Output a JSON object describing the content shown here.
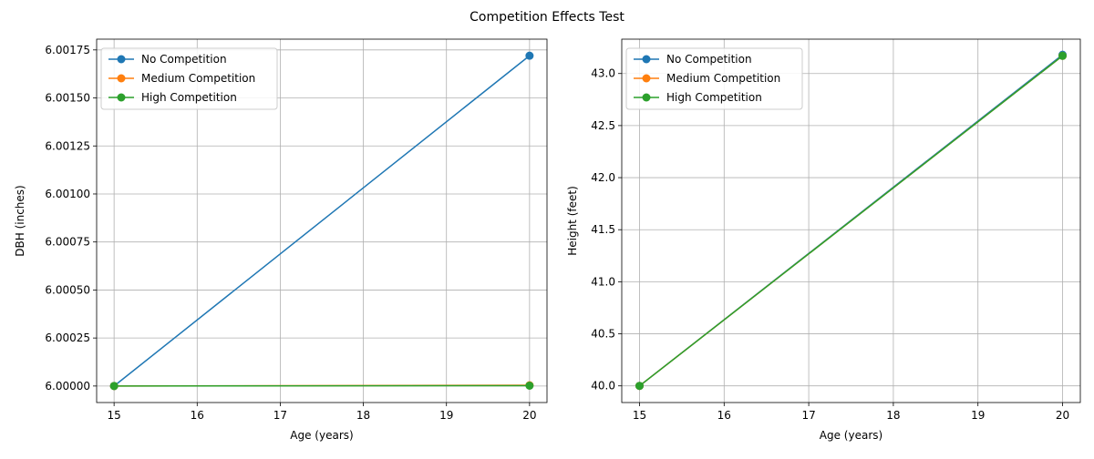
{
  "figure": {
    "title": "Competition Effects Test"
  },
  "chart_data": [
    {
      "type": "line",
      "xlabel": "Age (years)",
      "ylabel": "DBH (inches)",
      "xlim": [
        14.79,
        20.21
      ],
      "ylim": [
        5.999914,
        6.001806
      ],
      "xticks": [
        15,
        16,
        17,
        18,
        19,
        20
      ],
      "yticks": [
        6.0,
        6.00025,
        6.0005,
        6.00075,
        6.001,
        6.00125,
        6.0015,
        6.00175
      ],
      "ytick_decimals": 5,
      "grid": true,
      "legend": "top-left",
      "series": [
        {
          "name": "No Competition",
          "color": "#1f77b4",
          "x": [
            15,
            20
          ],
          "y": [
            6.0,
            6.00172
          ]
        },
        {
          "name": "Medium Competition",
          "color": "#ff7f0e",
          "x": [
            15,
            20
          ],
          "y": [
            6.0,
            6.000004
          ]
        },
        {
          "name": "High Competition",
          "color": "#2ca02c",
          "x": [
            15,
            20
          ],
          "y": [
            6.0,
            6.000002
          ]
        }
      ]
    },
    {
      "type": "line",
      "xlabel": "Age (years)",
      "ylabel": "Height (feet)",
      "xlim": [
        14.79,
        20.21
      ],
      "ylim": [
        39.84,
        43.33
      ],
      "xticks": [
        15,
        16,
        17,
        18,
        19,
        20
      ],
      "yticks": [
        40.0,
        40.5,
        41.0,
        41.5,
        42.0,
        42.5,
        43.0
      ],
      "ytick_decimals": 1,
      "grid": true,
      "legend": "top-left",
      "series": [
        {
          "name": "No Competition",
          "color": "#1f77b4",
          "x": [
            15,
            20
          ],
          "y": [
            40.0,
            43.18
          ]
        },
        {
          "name": "Medium Competition",
          "color": "#ff7f0e",
          "x": [
            15,
            20
          ],
          "y": [
            40.0,
            43.17
          ]
        },
        {
          "name": "High Competition",
          "color": "#2ca02c",
          "x": [
            15,
            20
          ],
          "y": [
            40.0,
            43.17
          ]
        }
      ]
    }
  ]
}
